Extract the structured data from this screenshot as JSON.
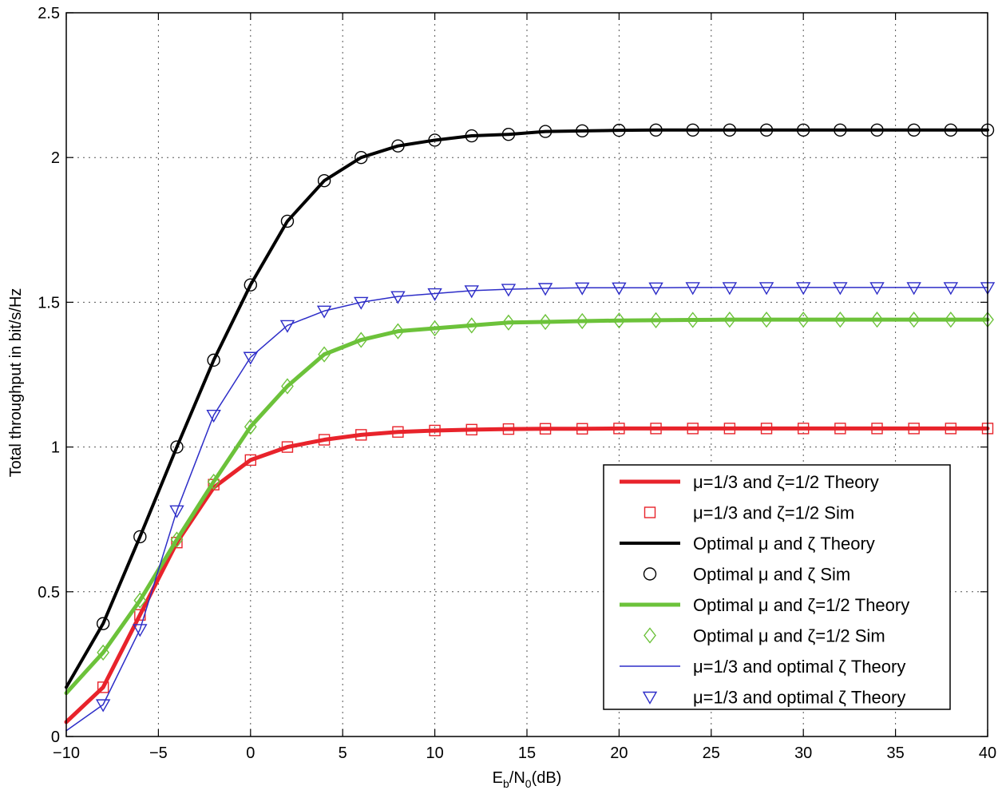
{
  "chart_data": {
    "type": "line",
    "title": "",
    "xlabel": "E_b/N_0(dB)",
    "xlabel_parts": {
      "e": "E",
      "b": "b",
      "slash": "/N",
      "zero": "0",
      "unit": "(dB)"
    },
    "ylabel": "Total throughput in bit/s/Hz",
    "xlim": [
      -10,
      40
    ],
    "ylim": [
      0,
      2.5
    ],
    "xticks": [
      -10,
      -5,
      0,
      5,
      10,
      15,
      20,
      25,
      30,
      35,
      40
    ],
    "xtick_labels": [
      "−10",
      "−5",
      "0",
      "5",
      "10",
      "15",
      "20",
      "25",
      "30",
      "35",
      "40"
    ],
    "yticks": [
      0,
      0.5,
      1,
      1.5,
      2,
      2.5
    ],
    "ytick_labels": [
      "0",
      "0.5",
      "1",
      "1.5",
      "2",
      "2.5"
    ],
    "grid": true,
    "legend_position": "bottom-right",
    "colors": {
      "red": "#e8232b",
      "black": "#000000",
      "green": "#6cc23a",
      "blue": "#2d2dc8",
      "axis": "#000000"
    },
    "series": [
      {
        "name": "μ=1/3 and ζ=1/2 Theory",
        "kind": "line",
        "color": "#e8232b",
        "width": 5,
        "x": [
          -10,
          -8,
          -6,
          -4,
          -2,
          0,
          2,
          4,
          6,
          8,
          10,
          12,
          14,
          16,
          18,
          20,
          22,
          24,
          26,
          28,
          30,
          32,
          34,
          36,
          38,
          40
        ],
        "y": [
          0.05,
          0.17,
          0.42,
          0.67,
          0.86,
          0.955,
          1.0,
          1.025,
          1.042,
          1.052,
          1.057,
          1.06,
          1.062,
          1.063,
          1.063,
          1.064,
          1.064,
          1.064,
          1.064,
          1.064,
          1.064,
          1.064,
          1.064,
          1.064,
          1.064,
          1.064
        ]
      },
      {
        "name": "μ=1/3 and ζ=1/2 Sim",
        "kind": "marker",
        "marker": "square",
        "color": "#e8232b",
        "x": [
          -8,
          -6,
          -4,
          -2,
          0,
          2,
          4,
          6,
          8,
          10,
          12,
          14,
          16,
          18,
          20,
          22,
          24,
          26,
          28,
          30,
          32,
          34,
          36,
          38,
          40
        ],
        "y": [
          0.17,
          0.42,
          0.67,
          0.87,
          0.955,
          1.0,
          1.025,
          1.042,
          1.052,
          1.057,
          1.06,
          1.062,
          1.063,
          1.063,
          1.064,
          1.064,
          1.064,
          1.064,
          1.064,
          1.064,
          1.064,
          1.064,
          1.064,
          1.064,
          1.064
        ]
      },
      {
        "name": "Optimal μ and ζ Theory",
        "kind": "line",
        "color": "#000000",
        "width": 4,
        "x": [
          -10,
          -8,
          -6,
          -4,
          -2,
          0,
          2,
          4,
          6,
          8,
          10,
          12,
          14,
          16,
          18,
          20,
          22,
          24,
          26,
          28,
          30,
          32,
          34,
          36,
          38,
          40
        ],
        "y": [
          0.17,
          0.39,
          0.69,
          1.0,
          1.3,
          1.56,
          1.78,
          1.92,
          2.0,
          2.04,
          2.06,
          2.075,
          2.08,
          2.09,
          2.092,
          2.094,
          2.095,
          2.095,
          2.095,
          2.095,
          2.095,
          2.095,
          2.095,
          2.095,
          2.095,
          2.095
        ]
      },
      {
        "name": "Optimal μ and ζ Sim",
        "kind": "marker",
        "marker": "circle",
        "color": "#000000",
        "x": [
          -8,
          -6,
          -4,
          -2,
          0,
          2,
          4,
          6,
          8,
          10,
          12,
          14,
          16,
          18,
          20,
          22,
          24,
          26,
          28,
          30,
          32,
          34,
          36,
          38,
          40
        ],
        "y": [
          0.39,
          0.69,
          1.0,
          1.3,
          1.56,
          1.78,
          1.92,
          2.0,
          2.04,
          2.06,
          2.075,
          2.08,
          2.09,
          2.092,
          2.094,
          2.095,
          2.095,
          2.095,
          2.095,
          2.095,
          2.095,
          2.095,
          2.095,
          2.095,
          2.095
        ]
      },
      {
        "name": "Optimal μ and ζ=1/2 Theory",
        "kind": "line",
        "color": "#6cc23a",
        "width": 5,
        "x": [
          -10,
          -8,
          -6,
          -4,
          -2,
          0,
          2,
          4,
          6,
          8,
          10,
          12,
          14,
          16,
          18,
          20,
          22,
          24,
          26,
          28,
          30,
          32,
          34,
          36,
          38,
          40
        ],
        "y": [
          0.15,
          0.29,
          0.47,
          0.68,
          0.88,
          1.07,
          1.21,
          1.32,
          1.37,
          1.4,
          1.41,
          1.42,
          1.43,
          1.432,
          1.435,
          1.437,
          1.438,
          1.439,
          1.44,
          1.44,
          1.44,
          1.44,
          1.44,
          1.44,
          1.44,
          1.44
        ]
      },
      {
        "name": "Optimal μ and ζ=1/2 Sim",
        "kind": "marker",
        "marker": "diamond",
        "color": "#6cc23a",
        "x": [
          -8,
          -6,
          -4,
          -2,
          0,
          2,
          4,
          6,
          8,
          10,
          12,
          14,
          16,
          18,
          20,
          22,
          24,
          26,
          28,
          30,
          32,
          34,
          36,
          38,
          40
        ],
        "y": [
          0.29,
          0.47,
          0.68,
          0.88,
          1.07,
          1.21,
          1.32,
          1.37,
          1.4,
          1.41,
          1.42,
          1.43,
          1.432,
          1.435,
          1.437,
          1.438,
          1.439,
          1.44,
          1.44,
          1.44,
          1.44,
          1.44,
          1.44,
          1.44,
          1.44
        ]
      },
      {
        "name": "μ=1/3 and optimal ζ Theory",
        "kind": "line",
        "color": "#2d2dc8",
        "width": 1.5,
        "x": [
          -10,
          -8,
          -6,
          -4,
          -2,
          0,
          2,
          4,
          6,
          8,
          10,
          12,
          14,
          16,
          18,
          20,
          22,
          24,
          26,
          28,
          30,
          32,
          34,
          36,
          38,
          40
        ],
        "y": [
          0.02,
          0.11,
          0.37,
          0.78,
          1.11,
          1.31,
          1.42,
          1.47,
          1.5,
          1.52,
          1.53,
          1.54,
          1.545,
          1.548,
          1.55,
          1.55,
          1.55,
          1.551,
          1.551,
          1.551,
          1.551,
          1.551,
          1.551,
          1.551,
          1.551,
          1.551
        ]
      },
      {
        "name": "μ=1/3 and optimal ζ Theory",
        "kind": "marker",
        "marker": "triangle-down",
        "color": "#2d2dc8",
        "x": [
          -8,
          -6,
          -4,
          -2,
          0,
          2,
          4,
          6,
          8,
          10,
          12,
          14,
          16,
          18,
          20,
          22,
          24,
          26,
          28,
          30,
          32,
          34,
          36,
          38,
          40
        ],
        "y": [
          0.11,
          0.37,
          0.78,
          1.11,
          1.31,
          1.42,
          1.47,
          1.5,
          1.52,
          1.53,
          1.54,
          1.545,
          1.548,
          1.55,
          1.55,
          1.55,
          1.551,
          1.551,
          1.551,
          1.551,
          1.551,
          1.551,
          1.551,
          1.551,
          1.551
        ]
      }
    ]
  }
}
